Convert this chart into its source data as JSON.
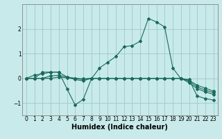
{
  "title": "",
  "xlabel": "Humidex (Indice chaleur)",
  "ylabel": "",
  "background_color": "#c8eaea",
  "grid_color": "#a0c8c8",
  "line_color": "#1a6b5a",
  "x_values": [
    0,
    1,
    2,
    3,
    4,
    5,
    6,
    7,
    8,
    9,
    10,
    11,
    12,
    13,
    14,
    15,
    16,
    17,
    18,
    19,
    20,
    21,
    22,
    23
  ],
  "series": [
    [
      0.0,
      0.13,
      0.18,
      0.25,
      0.25,
      -0.42,
      -1.08,
      -0.85,
      -0.02,
      0.42,
      0.65,
      0.88,
      1.28,
      1.32,
      1.5,
      2.42,
      2.28,
      2.08,
      0.42,
      -0.02,
      -0.05,
      -0.72,
      -0.82,
      -0.88
    ],
    [
      0.0,
      0.0,
      0.25,
      0.25,
      0.25,
      0.05,
      -0.05,
      -0.1,
      0.0,
      0.0,
      0.0,
      0.0,
      0.0,
      0.0,
      0.0,
      0.0,
      0.0,
      0.0,
      0.0,
      0.0,
      -0.18,
      -0.42,
      -0.55,
      -0.65
    ],
    [
      0.0,
      0.0,
      0.0,
      0.1,
      0.12,
      0.05,
      0.0,
      -0.05,
      0.0,
      0.0,
      0.0,
      0.0,
      0.0,
      0.0,
      0.0,
      0.0,
      0.0,
      0.0,
      0.0,
      0.0,
      -0.12,
      -0.35,
      -0.48,
      -0.58
    ],
    [
      0.0,
      0.0,
      0.0,
      0.0,
      0.05,
      0.02,
      0.0,
      -0.02,
      0.0,
      0.0,
      0.0,
      0.0,
      0.0,
      0.0,
      0.0,
      0.0,
      0.0,
      0.0,
      0.0,
      0.0,
      -0.08,
      -0.28,
      -0.4,
      -0.52
    ]
  ],
  "ylim": [
    -1.5,
    3.0
  ],
  "xlim": [
    -0.5,
    23.5
  ],
  "yticks": [
    -1,
    0,
    1,
    2
  ],
  "xticks": [
    0,
    1,
    2,
    3,
    4,
    5,
    6,
    7,
    8,
    9,
    10,
    11,
    12,
    13,
    14,
    15,
    16,
    17,
    18,
    19,
    20,
    21,
    22,
    23
  ],
  "tick_fontsize": 5.5,
  "xlabel_fontsize": 7.0,
  "marker": "D",
  "marker_size": 2.0,
  "linewidth": 0.8
}
